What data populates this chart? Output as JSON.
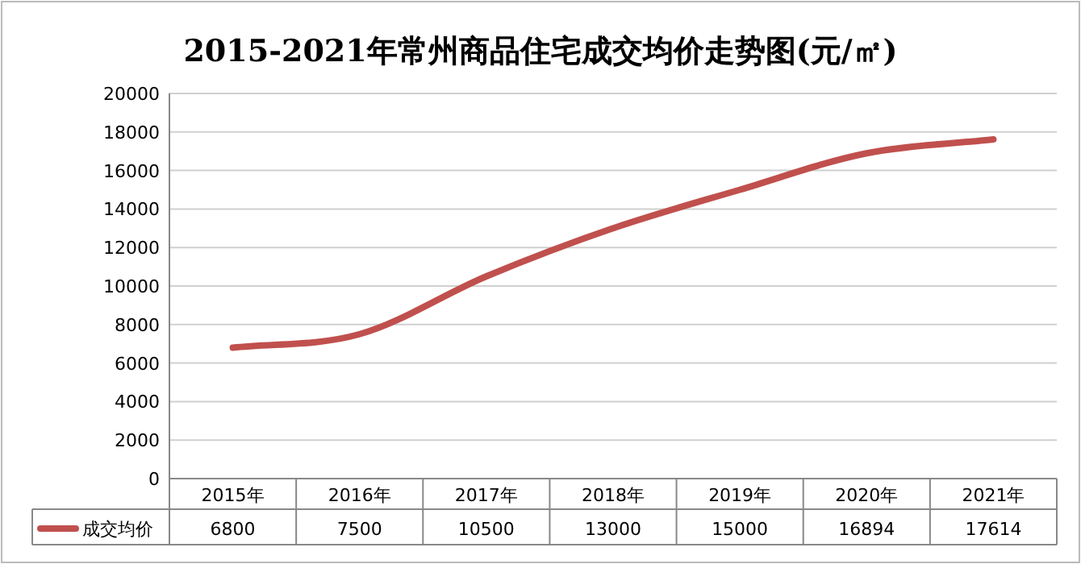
{
  "chart_data": {
    "type": "line",
    "title": "2015-2021年常州商品住宅成交均价走势图(元/㎡)",
    "categories": [
      "2015年",
      "2016年",
      "2017年",
      "2018年",
      "2019年",
      "2020年",
      "2021年"
    ],
    "series": [
      {
        "name": "成交均价",
        "color": "#c0504d",
        "values": [
          6800,
          7500,
          10500,
          13000,
          15000,
          16894,
          17614
        ]
      }
    ],
    "ylim": [
      0,
      20000
    ],
    "yticks": [
      0,
      2000,
      4000,
      6000,
      8000,
      10000,
      12000,
      14000,
      16000,
      18000,
      20000
    ],
    "grid": "y",
    "legend": "bottom",
    "data_labels": true,
    "marker": "none",
    "line_style": "solid"
  }
}
